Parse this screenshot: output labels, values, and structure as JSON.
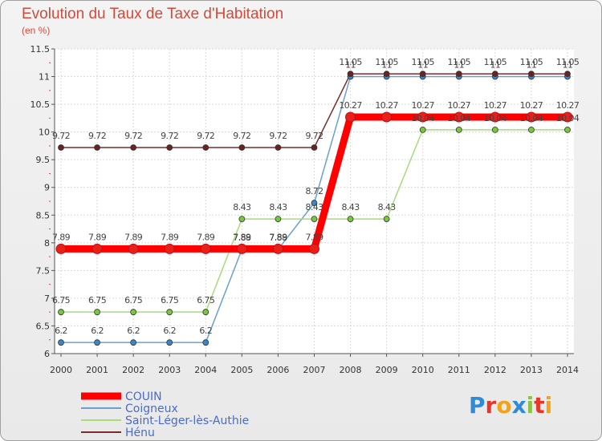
{
  "title": "Evolution du Taux de Taxe d'Habitation",
  "unit": "(en %)",
  "logo": [
    "P",
    "r",
    "o",
    "x",
    "i",
    "t",
    "i"
  ],
  "logo_colors": [
    "#2f8ad8",
    "#e8372a",
    "#f2a21b",
    "#2f8ad8",
    "#8bc34a",
    "#e8372a",
    "#f2a21b"
  ],
  "chart_data": {
    "type": "line",
    "title": "Evolution du Taux de Taxe d'Habitation",
    "ylabel": "(en %)",
    "ylim": [
      6,
      11.5
    ],
    "yticks": [
      "6",
      "6.5",
      "7",
      "7.5",
      "8",
      "8.5",
      "9",
      "9.5",
      "10",
      "10.5",
      "11",
      "11.5"
    ],
    "categories": [
      "2000",
      "2001",
      "2002",
      "2003",
      "2004",
      "2005",
      "2006",
      "2007",
      "2008",
      "2009",
      "2010",
      "2011",
      "2012",
      "2013",
      "2014"
    ],
    "series": [
      {
        "name": "COUIN",
        "color": "#ff0000",
        "point_color": "#e8201c",
        "width": 9,
        "radius": 6,
        "values": [
          7.89,
          7.89,
          7.89,
          7.89,
          7.89,
          7.89,
          7.89,
          7.89,
          10.27,
          10.27,
          10.27,
          10.27,
          10.27,
          10.27,
          10.27
        ],
        "labels": [
          "7.89",
          "7.89",
          "7.89",
          "7.89",
          "7.89",
          "7.89",
          "7.89",
          "7.89",
          "10.27",
          "10.27",
          "10.27",
          "10.27",
          "10.27",
          "10.27",
          "10.27"
        ]
      },
      {
        "name": "Coigneux",
        "color": "#6aa0d0",
        "point_color": "#3b86c8",
        "width": 1.5,
        "radius": 3.5,
        "values": [
          6.2,
          6.2,
          6.2,
          6.2,
          6.2,
          7.88,
          7.88,
          8.72,
          11,
          11,
          11,
          11,
          11,
          11,
          11
        ],
        "labels": [
          "6.2",
          "6.2",
          "6.2",
          "6.2",
          "6.2",
          "7.88",
          "7.88",
          "8.72",
          "11",
          "11",
          "11",
          "11",
          "11",
          "11",
          "11"
        ]
      },
      {
        "name": "Saint-Léger-lès-Authie",
        "color": "#a6dc7a",
        "point_color": "#79c83a",
        "width": 1.5,
        "radius": 3.5,
        "values": [
          6.75,
          6.75,
          6.75,
          6.75,
          6.75,
          8.43,
          8.43,
          8.43,
          8.43,
          8.43,
          10.04,
          10.04,
          10.04,
          10.04,
          10.04
        ],
        "labels": [
          "6.75",
          "6.75",
          "6.75",
          "6.75",
          "6.75",
          "8.43",
          "8.43",
          "8.43",
          "8.43",
          "8.43",
          "10.04",
          "10.04",
          "10.04",
          "10.04",
          "10.04"
        ]
      },
      {
        "name": "Hénu",
        "color": "#7a2c2c",
        "point_color": "#6a2222",
        "width": 1.5,
        "radius": 3.5,
        "values": [
          9.72,
          9.72,
          9.72,
          9.72,
          9.72,
          9.72,
          9.72,
          9.72,
          11.05,
          11.05,
          11.05,
          11.05,
          11.05,
          11.05,
          11.05
        ],
        "labels": [
          "9.72",
          "9.72",
          "9.72",
          "9.72",
          "9.72",
          "9.72",
          "9.72",
          "9.72",
          "11.05",
          "11.05",
          "11.05",
          "11.05",
          "11.05",
          "11.05",
          "11.05"
        ]
      }
    ]
  }
}
